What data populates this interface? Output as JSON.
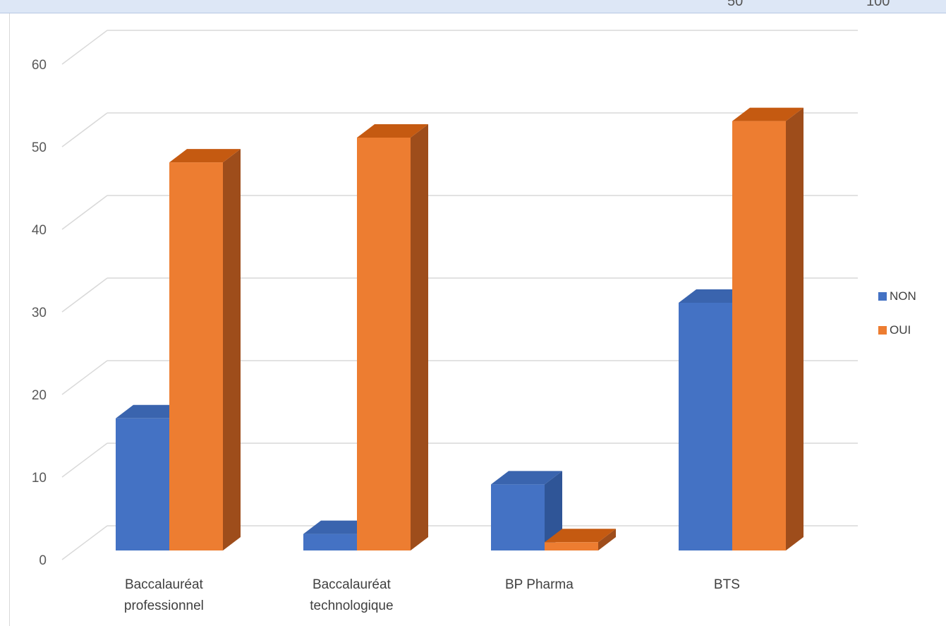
{
  "top_strip": {
    "fragment_left": "50",
    "fragment_right": "100"
  },
  "chart_data": {
    "type": "bar",
    "style": "3d-clustered-column",
    "categories": [
      [
        "Baccalauréat",
        "professionnel"
      ],
      [
        "Baccalauréat",
        "technologique"
      ],
      [
        "BP Pharma"
      ],
      [
        "BTS"
      ]
    ],
    "series": [
      {
        "name": "NON",
        "values": [
          16,
          2,
          8,
          30
        ],
        "color": "#4472c4",
        "side_color": "#2f5597",
        "top_color": "#3a64ae"
      },
      {
        "name": "OUI",
        "values": [
          47,
          50,
          1,
          52
        ],
        "color": "#ed7d31",
        "side_color": "#9e4d1b",
        "top_color": "#c55a11"
      }
    ],
    "ylim": [
      0,
      60
    ],
    "yticks": [
      "0",
      "10",
      "20",
      "30",
      "40",
      "50",
      "60"
    ],
    "grid": true,
    "legend_position": "right",
    "title": "",
    "xlabel": "",
    "ylabel": ""
  }
}
